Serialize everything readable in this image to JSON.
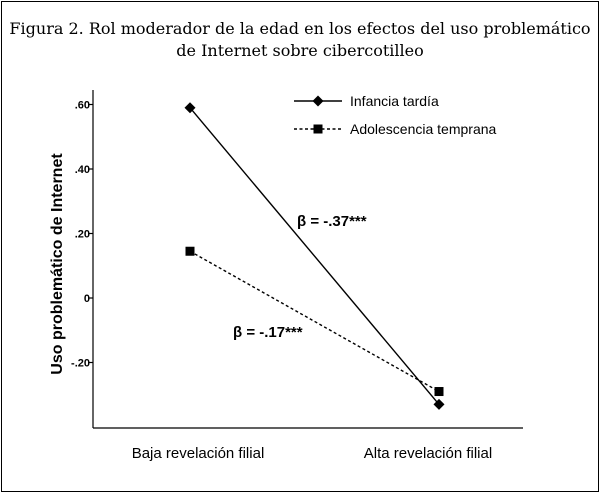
{
  "figure": {
    "title_line1": "Figura 2. Rol moderador de la edad en los efectos del uso problemático",
    "title_line2": "de Internet sobre cibercotilleo"
  },
  "chart_data": {
    "type": "line",
    "categories": [
      "Baja revelación filial",
      "Alta revelación filial"
    ],
    "ylabel": "Uso problemático de Internet",
    "xlabel": "",
    "ylim": [
      -0.4,
      0.62
    ],
    "yticks": [
      0.6,
      0.4,
      0.2,
      0,
      -0.2
    ],
    "ytick_labels": [
      ".60",
      ".40",
      ".20",
      "0",
      "-.20"
    ],
    "grid": false,
    "legend_position": "top-right",
    "series": [
      {
        "name": "Infancia tardía",
        "marker": "diamond",
        "line_style": "solid",
        "values": [
          0.59,
          -0.33
        ]
      },
      {
        "name": "Adolescencia temprana",
        "marker": "square",
        "line_style": "dashed",
        "values": [
          0.145,
          -0.29
        ]
      }
    ],
    "annotations": [
      {
        "text": "β = -.37***"
      },
      {
        "text": "β = -.17***"
      }
    ]
  }
}
